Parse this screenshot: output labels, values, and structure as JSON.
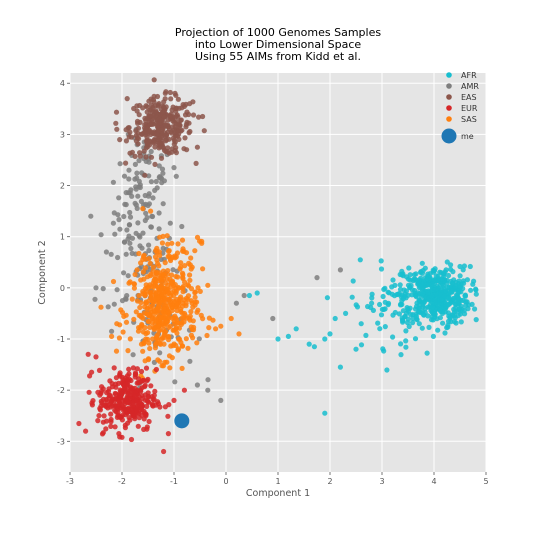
{
  "chart_data": {
    "type": "scatter",
    "title_lines": [
      "Projection of 1000 Genomes Samples",
      "into Lower Dimensional Space",
      "Using 55 AIMs from Kidd et al."
    ],
    "xlabel": "Component 1",
    "ylabel": "Component 2",
    "xlim": [
      -3,
      5
    ],
    "ylim": [
      -3.6,
      4.2
    ],
    "xticks": [
      -3,
      -2,
      -1,
      0,
      1,
      2,
      3,
      4,
      5
    ],
    "yticks": [
      -3,
      -2,
      -1,
      0,
      1,
      2,
      3,
      4
    ],
    "grid": true,
    "legend_position": "top-right",
    "series": [
      {
        "name": "AFR",
        "color": "#17becf",
        "clusters": [
          {
            "cx": 4.05,
            "cy": -0.15,
            "sx": 0.32,
            "sy": 0.28,
            "n": 420
          },
          {
            "cx": 3.3,
            "cy": -0.35,
            "sx": 0.45,
            "sy": 0.4,
            "n": 90
          }
        ],
        "points": [
          [
            1.6,
            -1.1
          ],
          [
            1.7,
            -1.15
          ],
          [
            1.9,
            -1.0
          ],
          [
            2.0,
            -0.9
          ],
          [
            2.2,
            -1.55
          ],
          [
            2.5,
            -1.2
          ],
          [
            1.35,
            -0.8
          ],
          [
            1.2,
            -0.95
          ],
          [
            1.9,
            -2.45
          ],
          [
            2.3,
            -0.5
          ],
          [
            2.6,
            -0.7
          ],
          [
            2.8,
            -0.3
          ],
          [
            0.45,
            -0.15
          ],
          [
            0.6,
            -0.1
          ],
          [
            2.1,
            -0.6
          ],
          [
            1.0,
            -1.0
          ]
        ]
      },
      {
        "name": "AMR",
        "color": "#7f7f7f",
        "clusters": [
          {
            "cx": -1.65,
            "cy": 1.5,
            "sx": 0.25,
            "sy": 0.45,
            "n": 70
          },
          {
            "cx": -1.55,
            "cy": 2.35,
            "sx": 0.28,
            "sy": 0.3,
            "n": 35
          },
          {
            "cx": -1.6,
            "cy": 0.45,
            "sx": 0.35,
            "sy": 0.55,
            "n": 60
          },
          {
            "cx": -1.3,
            "cy": -0.8,
            "sx": 0.35,
            "sy": 0.5,
            "n": 40
          }
        ],
        "points": [
          [
            -2.6,
            1.4
          ],
          [
            -2.3,
            0.7
          ],
          [
            -2.5,
            0.0
          ],
          [
            -1.0,
            2.35
          ],
          [
            -0.85,
            1.2
          ],
          [
            0.35,
            -0.15
          ],
          [
            1.75,
            0.2
          ],
          [
            2.2,
            0.35
          ],
          [
            -0.55,
            -1.9
          ],
          [
            -0.35,
            -2.0
          ],
          [
            -0.1,
            -2.2
          ],
          [
            0.2,
            -0.3
          ],
          [
            -2.2,
            -0.85
          ],
          [
            0.9,
            -0.6
          ]
        ]
      },
      {
        "name": "EAS",
        "color": "#8c564b",
        "clusters": [
          {
            "cx": -1.25,
            "cy": 3.15,
            "sx": 0.3,
            "sy": 0.28,
            "n": 300
          }
        ],
        "points": [
          [
            -2.1,
            3.1
          ],
          [
            -1.9,
            3.7
          ],
          [
            -0.7,
            3.6
          ],
          [
            -0.45,
            3.35
          ],
          [
            -0.55,
            2.75
          ],
          [
            -1.8,
            2.65
          ]
        ]
      },
      {
        "name": "EUR",
        "color": "#d62728",
        "clusters": [
          {
            "cx": -1.9,
            "cy": -2.2,
            "sx": 0.28,
            "sy": 0.3,
            "n": 300
          }
        ],
        "points": [
          [
            -2.65,
            -1.3
          ],
          [
            -2.5,
            -1.35
          ],
          [
            -2.7,
            -2.8
          ],
          [
            -1.0,
            -2.2
          ],
          [
            -0.8,
            -2.0
          ],
          [
            -1.2,
            -3.2
          ]
        ]
      },
      {
        "name": "SAS",
        "color": "#ff7f0e",
        "clusters": [
          {
            "cx": -1.2,
            "cy": -0.45,
            "sx": 0.32,
            "sy": 0.45,
            "n": 420
          },
          {
            "cx": -1.1,
            "cy": 0.55,
            "sx": 0.3,
            "sy": 0.3,
            "n": 60
          }
        ],
        "points": [
          [
            -0.2,
            -0.8
          ],
          [
            -0.1,
            -0.75
          ],
          [
            0.1,
            -0.6
          ],
          [
            0.25,
            -0.9
          ],
          [
            -1.6,
            1.55
          ],
          [
            -1.45,
            1.5
          ],
          [
            -2.1,
            -0.7
          ],
          [
            -2.2,
            -0.95
          ],
          [
            -0.35,
            0.05
          ]
        ]
      }
    ],
    "highlight": {
      "name": "me",
      "x": -0.85,
      "y": -2.6,
      "color": "#1f77b4"
    }
  }
}
